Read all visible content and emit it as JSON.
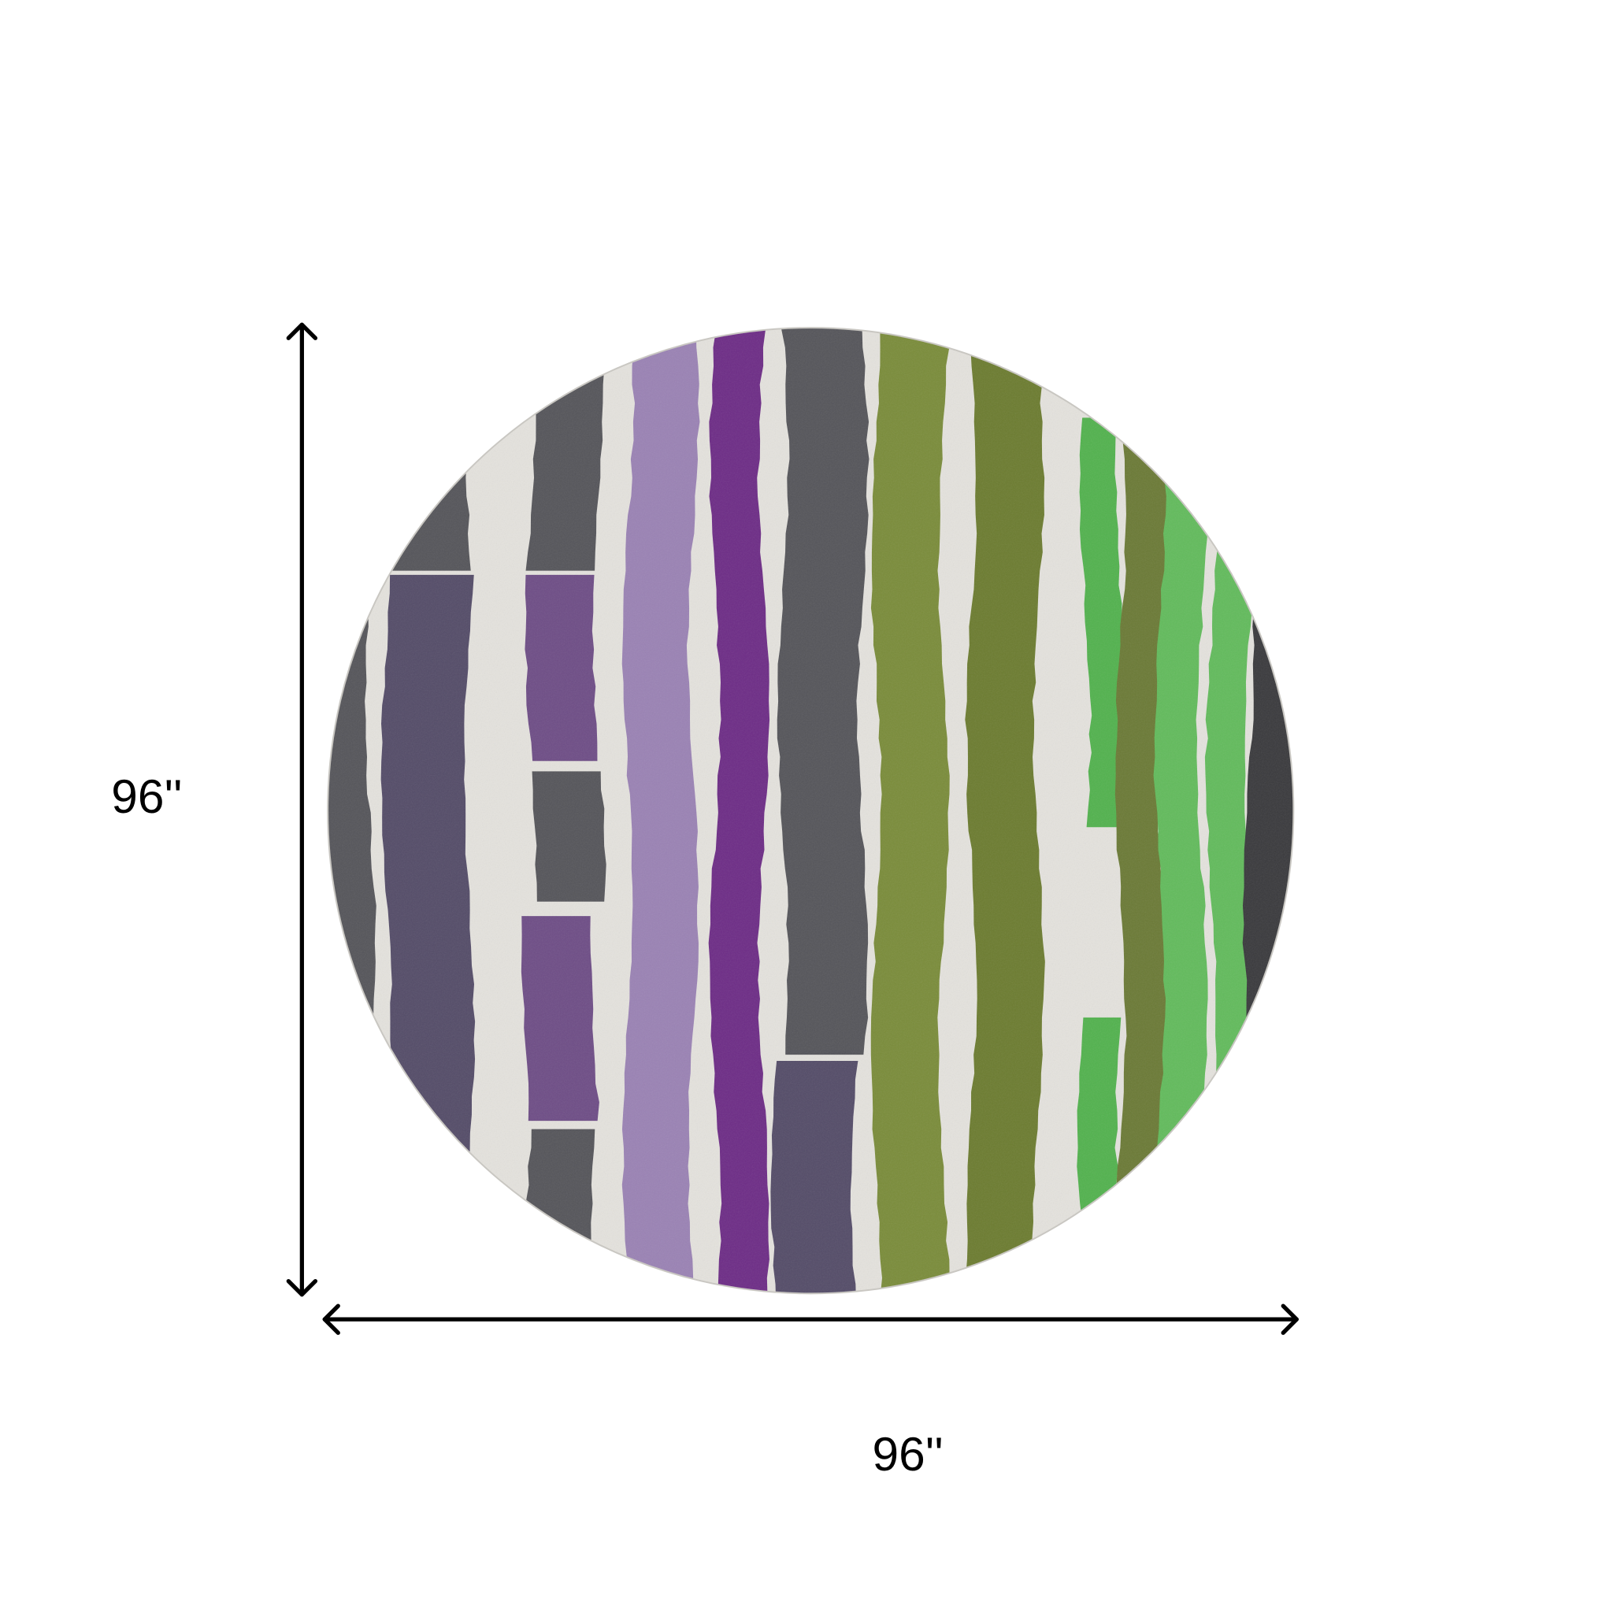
{
  "dimensions": {
    "height_label": "96''",
    "width_label": "96''"
  },
  "colors": {
    "background": "#ffffff",
    "rug_base": "#e4e2dd",
    "arrow": "#000000",
    "dark_gray": "#55555a",
    "charcoal": "#3a3a3d",
    "slate_purple": "#544c68",
    "purple": "#6e4d86",
    "light_purple": "#9a82b4",
    "violet": "#6d2c86",
    "olive": "#7a8c3a",
    "dark_olive": "#6c7c30",
    "moss": "#6b7a36",
    "green": "#52b24e",
    "light_green": "#62bb5c"
  }
}
